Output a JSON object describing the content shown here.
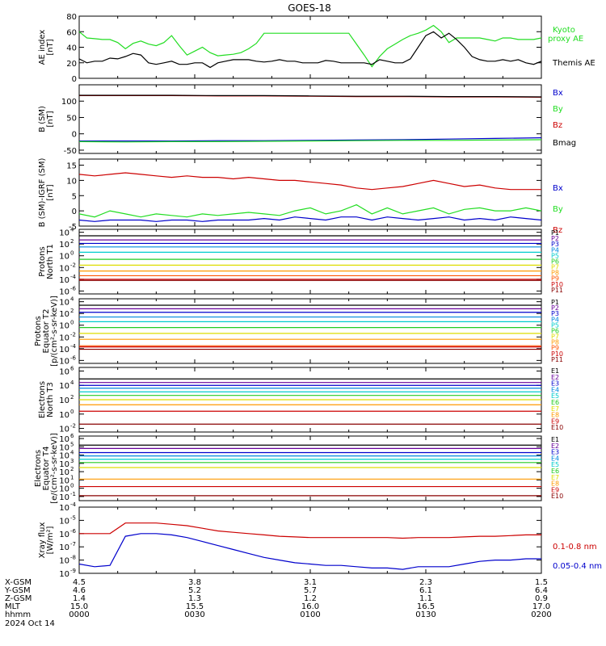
{
  "title": "GOES-18",
  "colors": {
    "axis": "#000000",
    "black": "#000000",
    "green": "#22dd22",
    "blue": "#0000cc",
    "red": "#cc0000"
  },
  "chart_data": [
    {
      "id": "ae",
      "type": "line",
      "ylabel": [
        "AE index",
        "[nT]"
      ],
      "ylim": [
        0,
        80
      ],
      "yticks": [
        0,
        20,
        40,
        60,
        80
      ],
      "ytick_labels": [
        "0",
        "20",
        "40",
        "60",
        "80"
      ],
      "x_minutes": [
        0,
        2,
        4,
        6,
        8,
        10,
        12,
        14,
        16,
        18,
        20,
        22,
        24,
        26,
        28,
        30,
        32,
        34,
        36,
        38,
        40,
        42,
        44,
        46,
        48,
        50,
        52,
        54,
        56,
        58,
        60,
        62,
        64,
        66,
        68,
        70,
        72,
        74,
        76,
        78,
        80,
        82,
        84,
        86,
        88,
        90,
        92,
        94,
        96,
        98,
        100,
        102,
        104,
        106,
        108,
        110,
        112,
        114,
        116,
        118,
        120
      ],
      "series": [
        {
          "name": "Kyoto proxy AE",
          "color": "#22dd22",
          "values": [
            60,
            52,
            51,
            50,
            50,
            46,
            38,
            45,
            48,
            44,
            42,
            46,
            55,
            42,
            30,
            35,
            40,
            33,
            29,
            30,
            31,
            33,
            38,
            45,
            58,
            58,
            58,
            58,
            58,
            58,
            58,
            58,
            58,
            58,
            58,
            58,
            44,
            30,
            15,
            28,
            38,
            44,
            50,
            55,
            58,
            62,
            68,
            60,
            46,
            52,
            52,
            52,
            52,
            50,
            48,
            52,
            52,
            50,
            50,
            50,
            52
          ]
        },
        {
          "name": "Themis AE",
          "color": "#000000",
          "values": [
            25,
            20,
            22,
            22,
            26,
            25,
            28,
            32,
            30,
            20,
            18,
            20,
            22,
            18,
            18,
            20,
            20,
            14,
            20,
            22,
            24,
            24,
            24,
            22,
            21,
            22,
            24,
            22,
            22,
            20,
            20,
            20,
            23,
            22,
            20,
            20,
            20,
            20,
            18,
            24,
            22,
            20,
            20,
            25,
            40,
            55,
            60,
            52,
            58,
            50,
            40,
            28,
            24,
            22,
            22,
            24,
            22,
            24,
            20,
            18,
            22
          ]
        }
      ],
      "legend": [
        "Kyoto",
        "proxy AE",
        "Themis AE"
      ]
    },
    {
      "id": "bsm",
      "type": "line",
      "ylabel": [
        "B (SM)",
        "[nT]"
      ],
      "ylim": [
        -60,
        150
      ],
      "yticks": [
        -50,
        0,
        50,
        100
      ],
      "ytick_labels": [
        "-50",
        "0",
        "50",
        "100"
      ],
      "x_minutes": [
        0,
        12,
        24,
        36,
        48,
        60,
        72,
        84,
        96,
        108,
        120
      ],
      "series": [
        {
          "name": "Bx",
          "color": "#0000cc",
          "values": [
            -22,
            -22,
            -22,
            -21,
            -21,
            -20,
            -19,
            -18,
            -16,
            -14,
            -12
          ]
        },
        {
          "name": "By",
          "color": "#22dd22",
          "values": [
            -24,
            -25,
            -24,
            -24,
            -23,
            -22,
            -21,
            -20,
            -20,
            -19,
            -18
          ]
        },
        {
          "name": "Bz",
          "color": "#cc0000",
          "values": [
            117,
            117,
            117,
            116,
            116,
            115,
            114,
            114,
            113,
            113,
            112
          ]
        },
        {
          "name": "Bmag",
          "color": "#000000",
          "values": [
            118,
            118,
            118,
            117,
            117,
            116,
            115,
            115,
            114,
            114,
            113
          ]
        }
      ],
      "legend": [
        "Bx",
        "By",
        "Bz",
        "Bmag"
      ]
    },
    {
      "id": "bigrf",
      "type": "line",
      "ylabel": [
        "B (SM)-IGRF (SM)",
        "[nT]"
      ],
      "ylim": [
        -5,
        17
      ],
      "yticks": [
        -5,
        0,
        5,
        10,
        15
      ],
      "ytick_labels": [
        "-5",
        "0",
        "5",
        "10",
        "15"
      ],
      "x_minutes": [
        0,
        4,
        8,
        12,
        16,
        20,
        24,
        28,
        32,
        36,
        40,
        44,
        48,
        52,
        56,
        60,
        64,
        68,
        72,
        76,
        80,
        84,
        88,
        92,
        96,
        100,
        104,
        108,
        112,
        116,
        120
      ],
      "series": [
        {
          "name": "Bz",
          "color": "#cc0000",
          "values": [
            12,
            11.5,
            12,
            12.5,
            12,
            11.5,
            11,
            11.5,
            11,
            11,
            10.5,
            11,
            10.5,
            10,
            10,
            9.5,
            9,
            8.5,
            7.5,
            7,
            7.5,
            8,
            9,
            10,
            9,
            8,
            8.5,
            7.5,
            7,
            7,
            7
          ]
        },
        {
          "name": "By",
          "color": "#22dd22",
          "values": [
            -1,
            -2,
            0,
            -1,
            -2,
            -1,
            -1.5,
            -2,
            -1,
            -1.5,
            -1,
            -0.5,
            -1,
            -1.5,
            0,
            1,
            -1,
            0,
            2,
            -1,
            1,
            -1,
            0,
            1,
            -1,
            0.5,
            1,
            0,
            0,
            1,
            0
          ]
        },
        {
          "name": "Bx",
          "color": "#0000cc",
          "values": [
            -3,
            -3.5,
            -3,
            -3,
            -3,
            -3.5,
            -3,
            -3,
            -3.5,
            -3,
            -3,
            -3,
            -2.5,
            -3,
            -2,
            -2.5,
            -3,
            -2,
            -2,
            -3,
            -2,
            -2.5,
            -3,
            -2.5,
            -2,
            -3,
            -2.5,
            -3,
            -2,
            -2.5,
            -3
          ]
        }
      ],
      "legend": [
        "Bx",
        "By",
        "Bz"
      ]
    },
    {
      "id": "protons-t1",
      "type": "line",
      "log": true,
      "ylabel": [
        "Protons",
        "North T1"
      ],
      "ylim_exp": [
        -6.5,
        4.5
      ],
      "ytick_exps": [
        -6,
        -4,
        -2,
        0,
        2,
        4
      ],
      "ytick_labels": [
        "10",
        "10",
        "10",
        "10",
        "10",
        "10"
      ],
      "ytick_sup": [
        "-6",
        "-4",
        "-2",
        "0",
        "2",
        "4"
      ],
      "channels": [
        {
          "name": "P1",
          "color": "#000000",
          "log10": 3.4
        },
        {
          "name": "P2",
          "color": "#660099",
          "log10": 2.7
        },
        {
          "name": "P3",
          "color": "#0000cc",
          "log10": 2.1
        },
        {
          "name": "P4",
          "color": "#0088dd",
          "log10": 1.5
        },
        {
          "name": "P5",
          "color": "#00cccc",
          "log10": 0.6
        },
        {
          "name": "P6",
          "color": "#22cc22",
          "log10": -0.6
        },
        {
          "name": "P7",
          "color": "#dddd00",
          "log10": -1.6
        },
        {
          "name": "P8",
          "color": "#ff9900",
          "log10": -2.6
        },
        {
          "name": "P9",
          "color": "#ff5500",
          "log10": -3.4
        },
        {
          "name": "P10",
          "color": "#cc0000",
          "log10": -4.0
        },
        {
          "name": "P11",
          "color": "#880000",
          "log10": -4.2
        }
      ]
    },
    {
      "id": "protons-t2",
      "type": "line",
      "log": true,
      "ylabel": [
        "Protons",
        "Equator T2",
        "[p/(cm²-s-sr-keV)]"
      ],
      "ylim_exp": [
        -6.5,
        4.5
      ],
      "ytick_exps": [
        -6,
        -4,
        -2,
        0,
        2,
        4
      ],
      "ytick_labels": [
        "10",
        "10",
        "10",
        "10",
        "10",
        "10"
      ],
      "ytick_sup": [
        "-6",
        "-4",
        "-2",
        "0",
        "2",
        "4"
      ],
      "channels": [
        {
          "name": "P1",
          "color": "#000000",
          "log10": 3.4
        },
        {
          "name": "P2",
          "color": "#660099",
          "log10": 2.8
        },
        {
          "name": "P3",
          "color": "#0000cc",
          "log10": 2.2
        },
        {
          "name": "P4",
          "color": "#0088dd",
          "log10": 1.4
        },
        {
          "name": "P5",
          "color": "#00cccc",
          "log10": 0.6
        },
        {
          "name": "P6",
          "color": "#22cc22",
          "log10": -0.4
        },
        {
          "name": "P7",
          "color": "#dddd00",
          "log10": -1.4
        },
        {
          "name": "P8",
          "color": "#ff9900",
          "log10": -2.4
        },
        {
          "name": "P9",
          "color": "#ff5500",
          "log10": -3.5
        },
        {
          "name": "P10",
          "color": "#cc0000",
          "log10": -3.7
        },
        {
          "name": "P11",
          "color": "#880000",
          "log10": -4.1
        }
      ]
    },
    {
      "id": "electrons-t3",
      "type": "line",
      "log": true,
      "ylabel": [
        "Electrons",
        "North T3"
      ],
      "ylim_exp": [
        -2.5,
        6.5
      ],
      "ytick_exps": [
        -2,
        0,
        2,
        4,
        6
      ],
      "ytick_labels": [
        "10",
        "10",
        "10",
        "10",
        "10"
      ],
      "ytick_sup": [
        "-2",
        "0",
        "2",
        "4",
        "6"
      ],
      "channels": [
        {
          "name": "E1",
          "color": "#000000",
          "log10": 4.9
        },
        {
          "name": "E2",
          "color": "#660099",
          "log10": 4.4
        },
        {
          "name": "E3",
          "color": "#0000cc",
          "log10": 4.0
        },
        {
          "name": "E4",
          "color": "#0088dd",
          "log10": 3.6
        },
        {
          "name": "E5",
          "color": "#00cccc",
          "log10": 3.1
        },
        {
          "name": "E6",
          "color": "#22cc22",
          "log10": 2.6
        },
        {
          "name": "E7",
          "color": "#dddd00",
          "log10": 2.0
        },
        {
          "name": "E8",
          "color": "#ff9900",
          "log10": 1.3
        },
        {
          "name": "E9",
          "color": "#cc0000",
          "log10": 0.4
        },
        {
          "name": "E10",
          "color": "#880000",
          "log10": -1.4
        }
      ]
    },
    {
      "id": "electrons-t4",
      "type": "line",
      "log": true,
      "ylabel": [
        "Electrons",
        "Equator T4",
        "[e/(cm²-s-sr-keV)]"
      ],
      "ylim_exp": [
        -1.5,
        6.3
      ],
      "ytick_exps": [
        -1,
        0,
        1,
        2,
        3,
        4,
        5,
        6
      ],
      "ytick_labels": [
        "10",
        "10",
        "10",
        "10",
        "10",
        "10",
        "10",
        "10"
      ],
      "ytick_sup": [
        "-1",
        "0",
        "1",
        "2",
        "3",
        "4",
        "5",
        "6"
      ],
      "channels": [
        {
          "name": "E1",
          "color": "#000000",
          "log10": 5.2
        },
        {
          "name": "E2",
          "color": "#660099",
          "log10": 4.8
        },
        {
          "name": "E3",
          "color": "#0000cc",
          "log10": 4.3
        },
        {
          "name": "E4",
          "color": "#0088dd",
          "log10": 3.9
        },
        {
          "name": "E5",
          "color": "#00cccc",
          "log10": 3.5
        },
        {
          "name": "E6",
          "color": "#22cc22",
          "log10": 3.1
        },
        {
          "name": "E7",
          "color": "#dddd00",
          "log10": 2.5
        },
        {
          "name": "E8",
          "color": "#ff9900",
          "log10": 1.1
        },
        {
          "name": "E9",
          "color": "#cc0000",
          "log10": 0.2
        },
        {
          "name": "E10",
          "color": "#880000",
          "log10": -0.9
        }
      ]
    },
    {
      "id": "xray",
      "type": "line",
      "log": true,
      "ylabel": [
        "Xray flux",
        "[W/m²]"
      ],
      "ylim_exp": [
        -9,
        -4
      ],
      "ytick_exps": [
        -9,
        -8,
        -7,
        -6,
        -5,
        -4
      ],
      "ytick_labels": [
        "10",
        "10",
        "10",
        "10",
        "10",
        "10"
      ],
      "ytick_sup": [
        "-9",
        "-8",
        "-7",
        "-6",
        "-5",
        "-4"
      ],
      "x_minutes": [
        0,
        4,
        8,
        12,
        16,
        20,
        24,
        28,
        32,
        36,
        40,
        44,
        48,
        52,
        56,
        60,
        64,
        68,
        72,
        76,
        80,
        84,
        88,
        92,
        96,
        100,
        104,
        108,
        112,
        116,
        120
      ],
      "series": [
        {
          "name": "0.1-0.8 nm",
          "color": "#cc0000",
          "log10": [
            -6.0,
            -6.0,
            -6.0,
            -5.2,
            -5.2,
            -5.2,
            -5.3,
            -5.4,
            -5.6,
            -5.8,
            -5.9,
            -6.0,
            -6.1,
            -6.2,
            -6.25,
            -6.3,
            -6.3,
            -6.3,
            -6.3,
            -6.3,
            -6.3,
            -6.35,
            -6.3,
            -6.3,
            -6.3,
            -6.25,
            -6.2,
            -6.2,
            -6.15,
            -6.1,
            -6.1
          ]
        },
        {
          "name": "0.05-0.4 nm",
          "color": "#0000cc",
          "log10": [
            -8.3,
            -8.5,
            -8.4,
            -6.2,
            -6.0,
            -6.0,
            -6.1,
            -6.3,
            -6.6,
            -6.9,
            -7.2,
            -7.5,
            -7.8,
            -8.0,
            -8.2,
            -8.3,
            -8.4,
            -8.4,
            -8.5,
            -8.6,
            -8.6,
            -8.7,
            -8.5,
            -8.5,
            -8.5,
            -8.3,
            -8.1,
            -8.0,
            -8.0,
            -7.9,
            -7.9
          ]
        }
      ],
      "legend": [
        "0.1-0.8 nm",
        "0.05-0.4 nm"
      ]
    }
  ],
  "footer": {
    "row_labels": [
      "X-GSM",
      "Y-GSM",
      "Z-GSM",
      "MLT",
      "hhmm",
      "2024 Oct 14"
    ],
    "columns": [
      {
        "x": "4.5",
        "y": "4.6",
        "z": "1.4",
        "mlt": "15.0",
        "time": "0000"
      },
      {
        "x": "3.8",
        "y": "5.2",
        "z": "1.3",
        "mlt": "15.5",
        "time": "0030"
      },
      {
        "x": "3.1",
        "y": "5.7",
        "z": "1.2",
        "mlt": "16.0",
        "time": "0100"
      },
      {
        "x": "2.3",
        "y": "6.1",
        "z": "1.1",
        "mlt": "16.5",
        "time": "0130"
      },
      {
        "x": "1.5",
        "y": "6.4",
        "z": "0.9",
        "mlt": "17.0",
        "time": "0200"
      }
    ]
  }
}
